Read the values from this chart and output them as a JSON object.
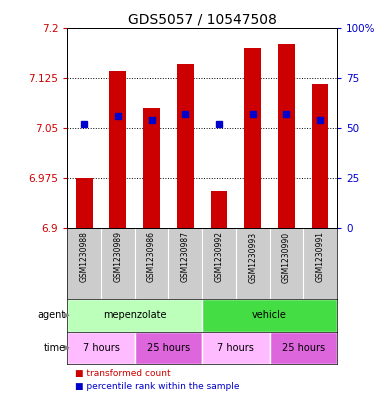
{
  "title": "GDS5057 / 10547508",
  "samples": [
    "GSM1230988",
    "GSM1230989",
    "GSM1230986",
    "GSM1230987",
    "GSM1230992",
    "GSM1230993",
    "GSM1230990",
    "GSM1230991"
  ],
  "bar_bottoms": [
    6.9,
    6.9,
    6.9,
    6.9,
    6.9,
    6.9,
    6.9,
    6.9
  ],
  "bar_tops": [
    6.975,
    7.135,
    7.08,
    7.145,
    6.955,
    7.17,
    7.175,
    7.115
  ],
  "percentiles": [
    52,
    56,
    54,
    57,
    52,
    57,
    57,
    54
  ],
  "ylim": [
    6.9,
    7.2
  ],
  "y2lim": [
    0,
    100
  ],
  "yticks": [
    6.9,
    6.975,
    7.05,
    7.125,
    7.2
  ],
  "y2ticks": [
    0,
    25,
    50,
    75,
    100
  ],
  "bar_color": "#cc0000",
  "percentile_color": "#0000cc",
  "grid_color": "#000000",
  "bg_color": "#ffffff",
  "plot_bg_color": "#ffffff",
  "tick_color_left": "#cc0000",
  "tick_color_right": "#0000cc",
  "agent_groups": [
    {
      "label": "mepenzolate",
      "start": 0,
      "end": 4,
      "color": "#bbffbb"
    },
    {
      "label": "vehicle",
      "start": 4,
      "end": 8,
      "color": "#44dd44"
    }
  ],
  "time_groups": [
    {
      "label": "7 hours",
      "start": 0,
      "end": 2,
      "color": "#ffbbff"
    },
    {
      "label": "25 hours",
      "start": 2,
      "end": 4,
      "color": "#dd66dd"
    },
    {
      "label": "7 hours",
      "start": 4,
      "end": 6,
      "color": "#ffbbff"
    },
    {
      "label": "25 hours",
      "start": 6,
      "end": 8,
      "color": "#dd66dd"
    }
  ],
  "xlabel_agent": "agent",
  "xlabel_time": "time",
  "legend_items": [
    {
      "label": "transformed count",
      "color": "#cc0000"
    },
    {
      "label": "percentile rank within the sample",
      "color": "#0000cc"
    }
  ],
  "title_fontsize": 10,
  "tick_fontsize": 7.5,
  "bar_width": 0.5,
  "percentile_marker_size": 5,
  "sample_fontsize": 5.5,
  "label_fontsize": 7,
  "legend_fontsize": 6.5
}
